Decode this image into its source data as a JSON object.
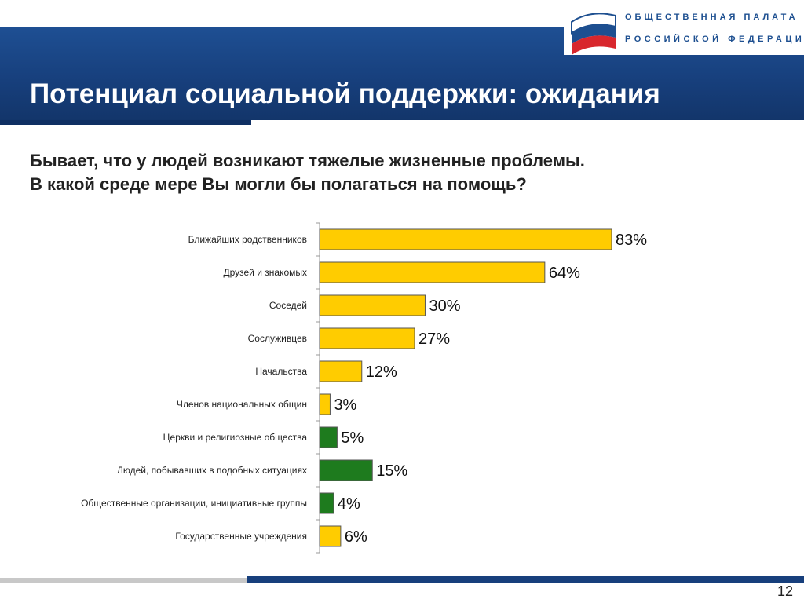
{
  "header": {
    "title": "Потенциал социальной поддержки: ожидания",
    "logo_line1": "ОБЩЕСТВЕННАЯ ПАЛАТА",
    "logo_line2": "РОССИЙСКОЙ ФЕДЕРАЦИИ"
  },
  "question": {
    "line1": "Бывает, что у людей возникают тяжелые жизненные проблемы.",
    "line2": "В какой среде мере Вы могли бы полагаться на помощь?"
  },
  "colors": {
    "yellow": "#ffcc00",
    "green": "#1e7b1e",
    "band": "#173f7c"
  },
  "chart_data": {
    "type": "bar",
    "orientation": "horizontal",
    "categories": [
      "Ближайших родственников",
      "Друзей и знакомых",
      "Соседей",
      "Сослуживцев",
      "Начальства",
      "Членов национальных общин",
      "Церкви и религиозные общества",
      "Людей, побывавших в подобных ситуациях",
      "Общественные организации, инициативные группы",
      "Государственные учреждения"
    ],
    "values": [
      83,
      64,
      30,
      27,
      12,
      3,
      5,
      15,
      4,
      6
    ],
    "value_labels": [
      "83%",
      "64%",
      "30%",
      "27%",
      "12%",
      "3%",
      "5%",
      "15%",
      "4%",
      "6%"
    ],
    "bar_colors": [
      "yellow",
      "yellow",
      "yellow",
      "yellow",
      "yellow",
      "yellow",
      "green",
      "green",
      "green",
      "yellow"
    ],
    "xlim": [
      0,
      100
    ]
  },
  "footer": {
    "page_number": "12"
  }
}
